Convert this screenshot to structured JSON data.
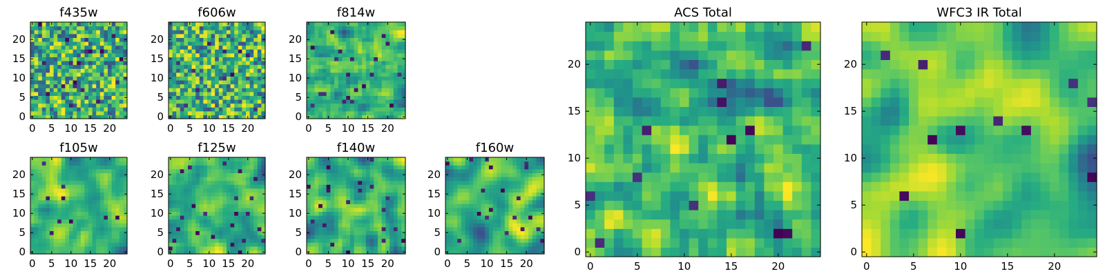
{
  "chart_data": [
    {
      "type": "heatmap",
      "title": "f435w",
      "xticks": [
        "0",
        "5",
        "10",
        "15",
        "20"
      ],
      "yticks": [
        "0",
        "5",
        "10",
        "15",
        "20"
      ],
      "xlim": [
        0,
        25
      ],
      "ylim": [
        0,
        25
      ],
      "size": 25,
      "seed": 11,
      "smooth": 0,
      "grid": false,
      "colormap": "viridis"
    },
    {
      "type": "heatmap",
      "title": "f606w",
      "xticks": [
        "0",
        "5",
        "10",
        "15",
        "20"
      ],
      "yticks": [
        "0",
        "5",
        "10",
        "15",
        "20"
      ],
      "xlim": [
        0,
        25
      ],
      "ylim": [
        0,
        25
      ],
      "size": 25,
      "seed": 23,
      "smooth": 0,
      "grid": false,
      "colormap": "viridis"
    },
    {
      "type": "heatmap",
      "title": "f814w",
      "xticks": [
        "0",
        "5",
        "10",
        "15",
        "20"
      ],
      "yticks": [
        "0",
        "5",
        "10",
        "15",
        "20"
      ],
      "xlim": [
        0,
        25
      ],
      "ylim": [
        0,
        25
      ],
      "size": 25,
      "seed": 37,
      "smooth": 1,
      "grid": false,
      "colormap": "viridis"
    },
    {
      "type": "heatmap",
      "title": "f105w",
      "xticks": [
        "0",
        "5",
        "10",
        "15",
        "20"
      ],
      "yticks": [
        "0",
        "5",
        "10",
        "15",
        "20"
      ],
      "xlim": [
        0,
        25
      ],
      "ylim": [
        0,
        25
      ],
      "size": 25,
      "seed": 41,
      "smooth": 2,
      "grid": false,
      "colormap": "viridis"
    },
    {
      "type": "heatmap",
      "title": "f125w",
      "xticks": [
        "0",
        "5",
        "10",
        "15",
        "20"
      ],
      "yticks": [
        "0",
        "5",
        "10",
        "15",
        "20"
      ],
      "xlim": [
        0,
        25
      ],
      "ylim": [
        0,
        25
      ],
      "size": 25,
      "seed": 53,
      "smooth": 2,
      "grid": false,
      "colormap": "viridis"
    },
    {
      "type": "heatmap",
      "title": "f140w",
      "xticks": [
        "0",
        "5",
        "10",
        "15",
        "20"
      ],
      "yticks": [
        "0",
        "5",
        "10",
        "15",
        "20"
      ],
      "xlim": [
        0,
        25
      ],
      "ylim": [
        0,
        25
      ],
      "size": 25,
      "seed": 67,
      "smooth": 2,
      "grid": false,
      "colormap": "viridis"
    },
    {
      "type": "heatmap",
      "title": "f160w",
      "xticks": [
        "0",
        "5",
        "10",
        "15",
        "20"
      ],
      "yticks": [
        "0",
        "5",
        "10",
        "15",
        "20"
      ],
      "xlim": [
        0,
        25
      ],
      "ylim": [
        0,
        25
      ],
      "size": 25,
      "seed": 79,
      "smooth": 3,
      "grid": false,
      "colormap": "viridis"
    },
    {
      "type": "heatmap",
      "title": "ACS Total",
      "xticks": [
        "0",
        "5",
        "10",
        "15",
        "20"
      ],
      "yticks": [
        "0",
        "5",
        "10",
        "15",
        "20"
      ],
      "xlim": [
        0,
        25
      ],
      "ylim": [
        0,
        25
      ],
      "size": 25,
      "seed": 97,
      "smooth": 1,
      "grid": false,
      "colormap": "viridis"
    },
    {
      "type": "heatmap",
      "title": "WFC3 IR Total",
      "xticks": [
        "0",
        "5",
        "10",
        "15",
        "20"
      ],
      "yticks": [
        "0",
        "5",
        "10",
        "15",
        "20"
      ],
      "xlim": [
        0,
        25
      ],
      "ylim": [
        0,
        25
      ],
      "size": 25,
      "seed": 113,
      "smooth": 3,
      "grid": false,
      "colormap": "viridis"
    }
  ]
}
